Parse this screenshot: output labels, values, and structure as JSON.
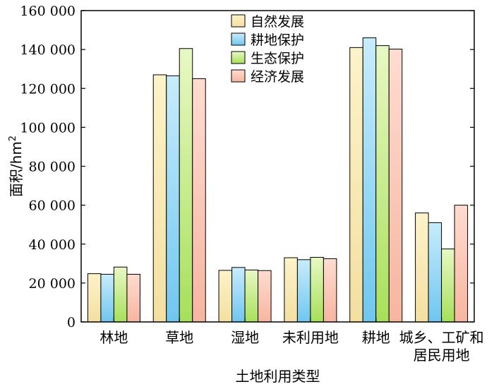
{
  "chart_data": {
    "type": "bar",
    "xlabel": "土地利用类型",
    "ylabel": "面积/hm",
    "ylabel_sup": "2",
    "ylim": [
      0,
      160000
    ],
    "yticks": [
      0,
      20000,
      40000,
      60000,
      80000,
      100000,
      120000,
      140000,
      160000
    ],
    "ytick_labels": [
      "0",
      "20 000",
      "40 000",
      "60 000",
      "80 000",
      "100 000",
      "120 000",
      "140 000",
      "160 000"
    ],
    "categories": [
      {
        "lines": [
          "林地"
        ]
      },
      {
        "lines": [
          "草地"
        ]
      },
      {
        "lines": [
          "湿地"
        ]
      },
      {
        "lines": [
          "未利用地"
        ]
      },
      {
        "lines": [
          "耕地"
        ]
      },
      {
        "lines": [
          "城乡、工矿和",
          "居民用地"
        ]
      }
    ],
    "legend_position": "top-center",
    "series": [
      {
        "name": "自然发展",
        "color_top": "#fdf3c9",
        "color_bottom": "#f4dfa0",
        "values": [
          24800,
          127000,
          26500,
          33000,
          141000,
          56000
        ]
      },
      {
        "name": "耕地保护",
        "color_top": "#c8ecfb",
        "color_bottom": "#6fc6f0",
        "values": [
          24500,
          126500,
          28000,
          32000,
          146000,
          51000
        ]
      },
      {
        "name": "生态保护",
        "color_top": "#e8f8c4",
        "color_bottom": "#a7e05a",
        "values": [
          28200,
          140500,
          26700,
          33200,
          142000,
          37500
        ]
      },
      {
        "name": "经济发展",
        "color_top": "#ffdcd0",
        "color_bottom": "#f7b5a0",
        "values": [
          24500,
          125000,
          26400,
          32500,
          140200,
          60000
        ]
      }
    ]
  }
}
